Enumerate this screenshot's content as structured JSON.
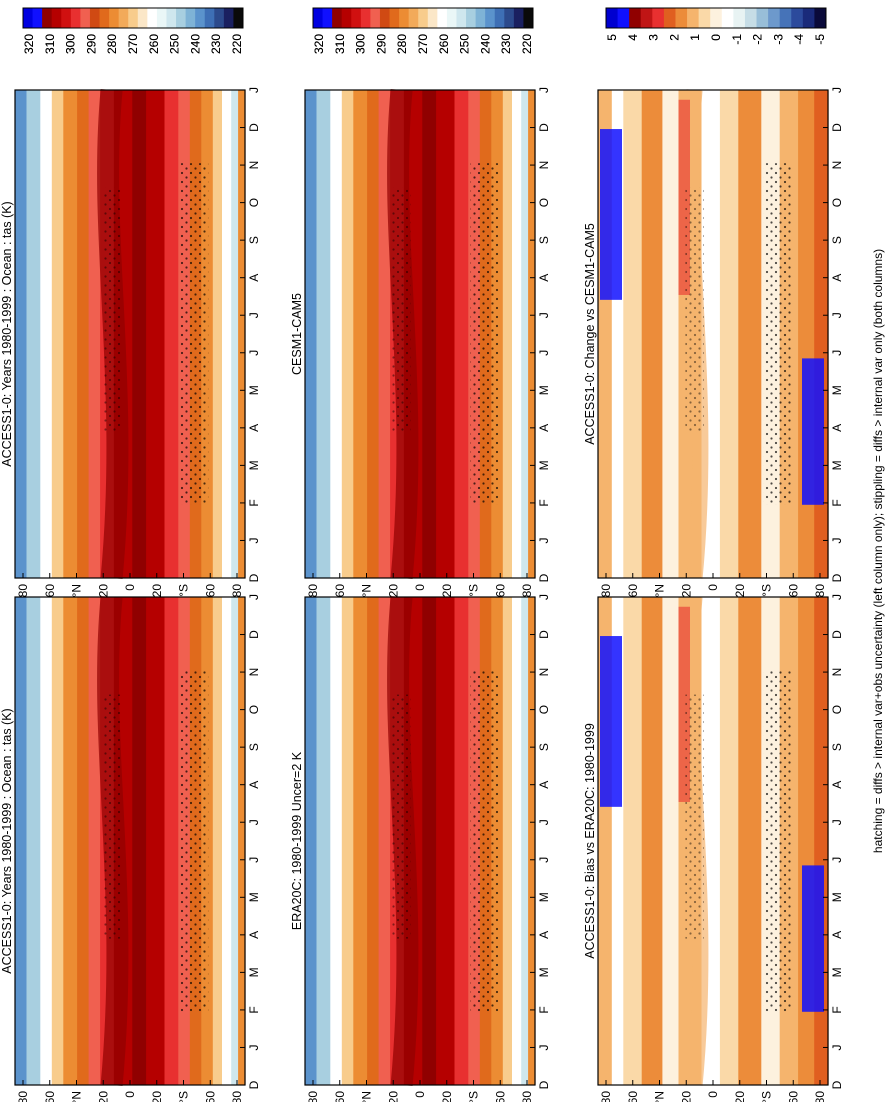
{
  "footnote": "hatching = diffs > internal var+obs uncertainty (left column only); stippling = diffs > internal var only (both columns)",
  "palettes": {
    "temperature": [
      "#0a0a0a",
      "#1a2060",
      "#2c4a8c",
      "#3e6fb5",
      "#5b93cc",
      "#7fb3d6",
      "#a8cfe0",
      "#cfe7ee",
      "#eaf7f7",
      "#ffffff",
      "#fbe7c8",
      "#f8cc8c",
      "#f2aa5a",
      "#ec8c33",
      "#e06a1c",
      "#d04a13",
      "#f06050",
      "#e83030",
      "#d01010",
      "#b50000",
      "#900000",
      "#1010ff",
      "#0000e0"
    ],
    "difference": [
      "#0a0a3a",
      "#1a2a7a",
      "#2c4a9c",
      "#4673b8",
      "#6d99cc",
      "#98bed8",
      "#c6dde6",
      "#e8f3f3",
      "#ffffff",
      "#fdf1de",
      "#fad9a8",
      "#f5b46d",
      "#ec8c3a",
      "#e05f20",
      "#e83030",
      "#c01515",
      "#900000",
      "#1010ff",
      "#0000d0"
    ]
  },
  "colorbars": {
    "temperature": [
      "320",
      "310",
      "300",
      "290",
      "280",
      "270",
      "260",
      "250",
      "240",
      "230",
      "220"
    ],
    "difference": [
      "5",
      "4",
      "3",
      "2",
      "1",
      "0",
      "-1",
      "-2",
      "-3",
      "-4",
      "-5"
    ]
  },
  "month_labels": [
    "D",
    "J",
    "F",
    "M",
    "A",
    "M",
    "J",
    "J",
    "A",
    "S",
    "O",
    "N",
    "D",
    "J"
  ],
  "lat_labels": [
    "80",
    "60",
    "°N",
    "20",
    "0",
    "20",
    "°S",
    "60",
    "80"
  ],
  "chart_data": [
    {
      "type": "heatmap",
      "title": "ACCESS1-0: Years 1980-1999 : Ocean : tas (K)",
      "x": [
        "D",
        "J",
        "F",
        "M",
        "A",
        "M",
        "J",
        "J",
        "A",
        "S",
        "O",
        "N",
        "D",
        "J"
      ],
      "y": [
        "80",
        "60",
        "°N",
        "20",
        "0",
        "20",
        "°S",
        "60",
        "80"
      ],
      "colorbar": [
        "320",
        "310",
        "300",
        "290",
        "280",
        "270",
        "260",
        "250",
        "240",
        "230",
        "220"
      ]
    },
    {
      "type": "heatmap",
      "title": "ACCESS1-0: Years 1980-1999 : Ocean : tas (K)",
      "x": [
        "D",
        "J",
        "F",
        "M",
        "A",
        "M",
        "J",
        "J",
        "A",
        "S",
        "O",
        "N",
        "D",
        "J"
      ],
      "y": [
        "80",
        "60",
        "°N",
        "20",
        "0",
        "20",
        "°S",
        "60",
        "80"
      ],
      "colorbar": [
        "320",
        "310",
        "300",
        "290",
        "280",
        "270",
        "260",
        "250",
        "240",
        "230",
        "220"
      ]
    },
    {
      "type": "heatmap",
      "title": "ERA20C: 1980-1999 Uncer=2 K",
      "x": [
        "D",
        "J",
        "F",
        "M",
        "A",
        "M",
        "J",
        "J",
        "A",
        "S",
        "O",
        "N",
        "D",
        "J"
      ],
      "y": [
        "80",
        "60",
        "°N",
        "20",
        "0",
        "20",
        "°S",
        "60",
        "80"
      ],
      "colorbar": [
        "320",
        "310",
        "300",
        "290",
        "280",
        "270",
        "260",
        "250",
        "240",
        "230",
        "220"
      ]
    },
    {
      "type": "heatmap",
      "title": "CESM1-CAM5",
      "x": [
        "D",
        "J",
        "F",
        "M",
        "A",
        "M",
        "J",
        "J",
        "A",
        "S",
        "O",
        "N",
        "D",
        "J"
      ],
      "y": [
        "80",
        "60",
        "°N",
        "20",
        "0",
        "20",
        "°S",
        "60",
        "80"
      ],
      "colorbar": [
        "320",
        "310",
        "300",
        "290",
        "280",
        "270",
        "260",
        "250",
        "240",
        "230",
        "220"
      ]
    },
    {
      "type": "heatmap",
      "title": "ACCESS1-0: Bias vs ERA20C: 1980-1999",
      "x": [
        "D",
        "J",
        "F",
        "M",
        "A",
        "M",
        "J",
        "J",
        "A",
        "S",
        "O",
        "N",
        "D",
        "J"
      ],
      "y": [
        "80",
        "60",
        "°N",
        "20",
        "0",
        "20",
        "°S",
        "60",
        "80"
      ],
      "colorbar": [
        "5",
        "4",
        "3",
        "2",
        "1",
        "0",
        "-1",
        "-2",
        "-3",
        "-4",
        "-5"
      ]
    },
    {
      "type": "heatmap",
      "title": "ACCESS1-0: Change vs CESM1-CAM5",
      "x": [
        "D",
        "J",
        "F",
        "M",
        "A",
        "M",
        "J",
        "J",
        "A",
        "S",
        "O",
        "N",
        "D",
        "J"
      ],
      "y": [
        "80",
        "60",
        "°N",
        "20",
        "0",
        "20",
        "°S",
        "60",
        "80"
      ],
      "colorbar": [
        "5",
        "4",
        "3",
        "2",
        "1",
        "0",
        "-1",
        "-2",
        "-3",
        "-4",
        "-5"
      ]
    }
  ]
}
